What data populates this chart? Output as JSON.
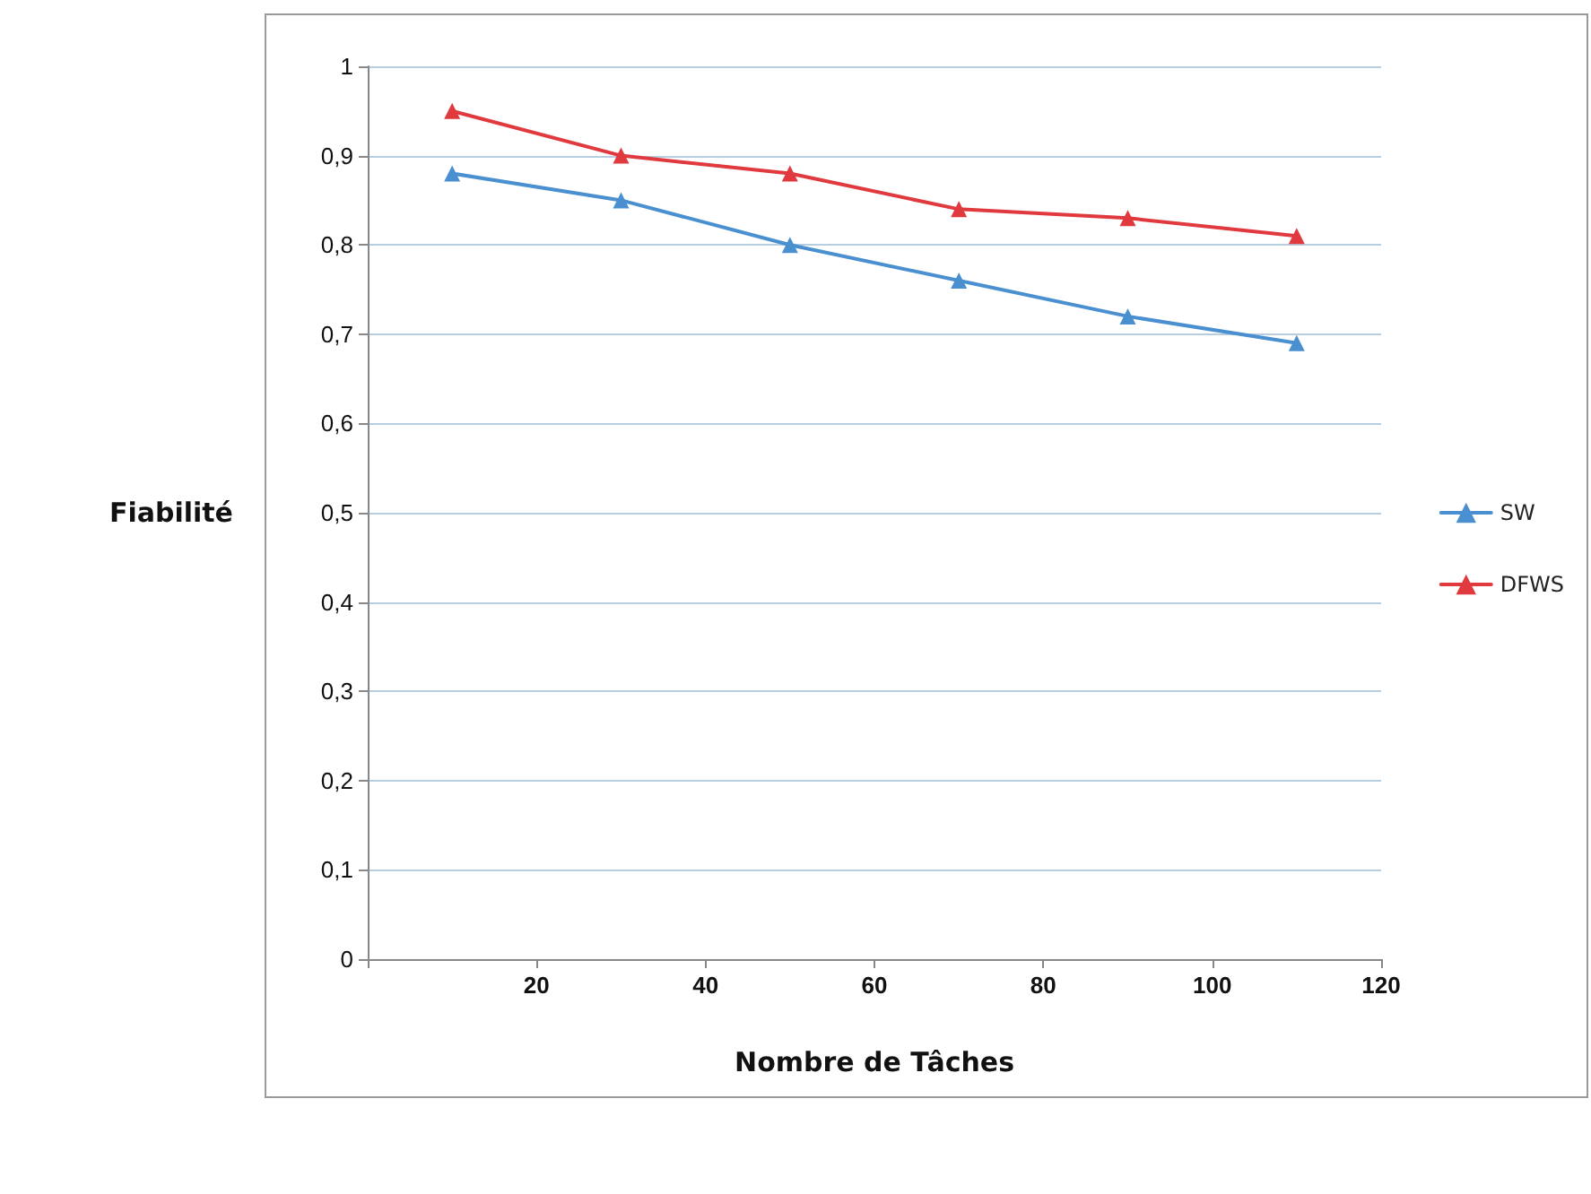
{
  "chart_data": {
    "type": "line",
    "xlabel": "Nombre de Tâches",
    "ylabel": "Fiabilité",
    "x": [
      10,
      30,
      50,
      70,
      90,
      110
    ],
    "series": [
      {
        "name": "SW",
        "color": "#4a90d0",
        "values": [
          0.88,
          0.85,
          0.8,
          0.76,
          0.72,
          0.69
        ]
      },
      {
        "name": "DFWS",
        "color": "#e0393e",
        "values": [
          0.95,
          0.9,
          0.88,
          0.84,
          0.83,
          0.81
        ]
      }
    ],
    "xlim": [
      0,
      120
    ],
    "xticks": [
      {
        "value": 0,
        "label": null
      },
      20,
      40,
      60,
      80,
      100,
      120
    ],
    "ylim": [
      0,
      1
    ],
    "yticks": [
      0,
      {
        "value": 0.1,
        "label": "0,1"
      },
      {
        "value": 0.2,
        "label": "0,2"
      },
      {
        "value": 0.3,
        "label": "0,3"
      },
      {
        "value": 0.4,
        "label": "0,4"
      },
      {
        "value": 0.5,
        "label": "0,5"
      },
      {
        "value": 0.6,
        "label": "0,6"
      },
      {
        "value": 0.7,
        "label": "0,7"
      },
      {
        "value": 0.8,
        "label": "0,8"
      },
      {
        "value": 0.9,
        "label": "0,9"
      },
      1
    ],
    "grid": "y",
    "legend": "right",
    "marker": "triangle",
    "line_style": "solid"
  }
}
